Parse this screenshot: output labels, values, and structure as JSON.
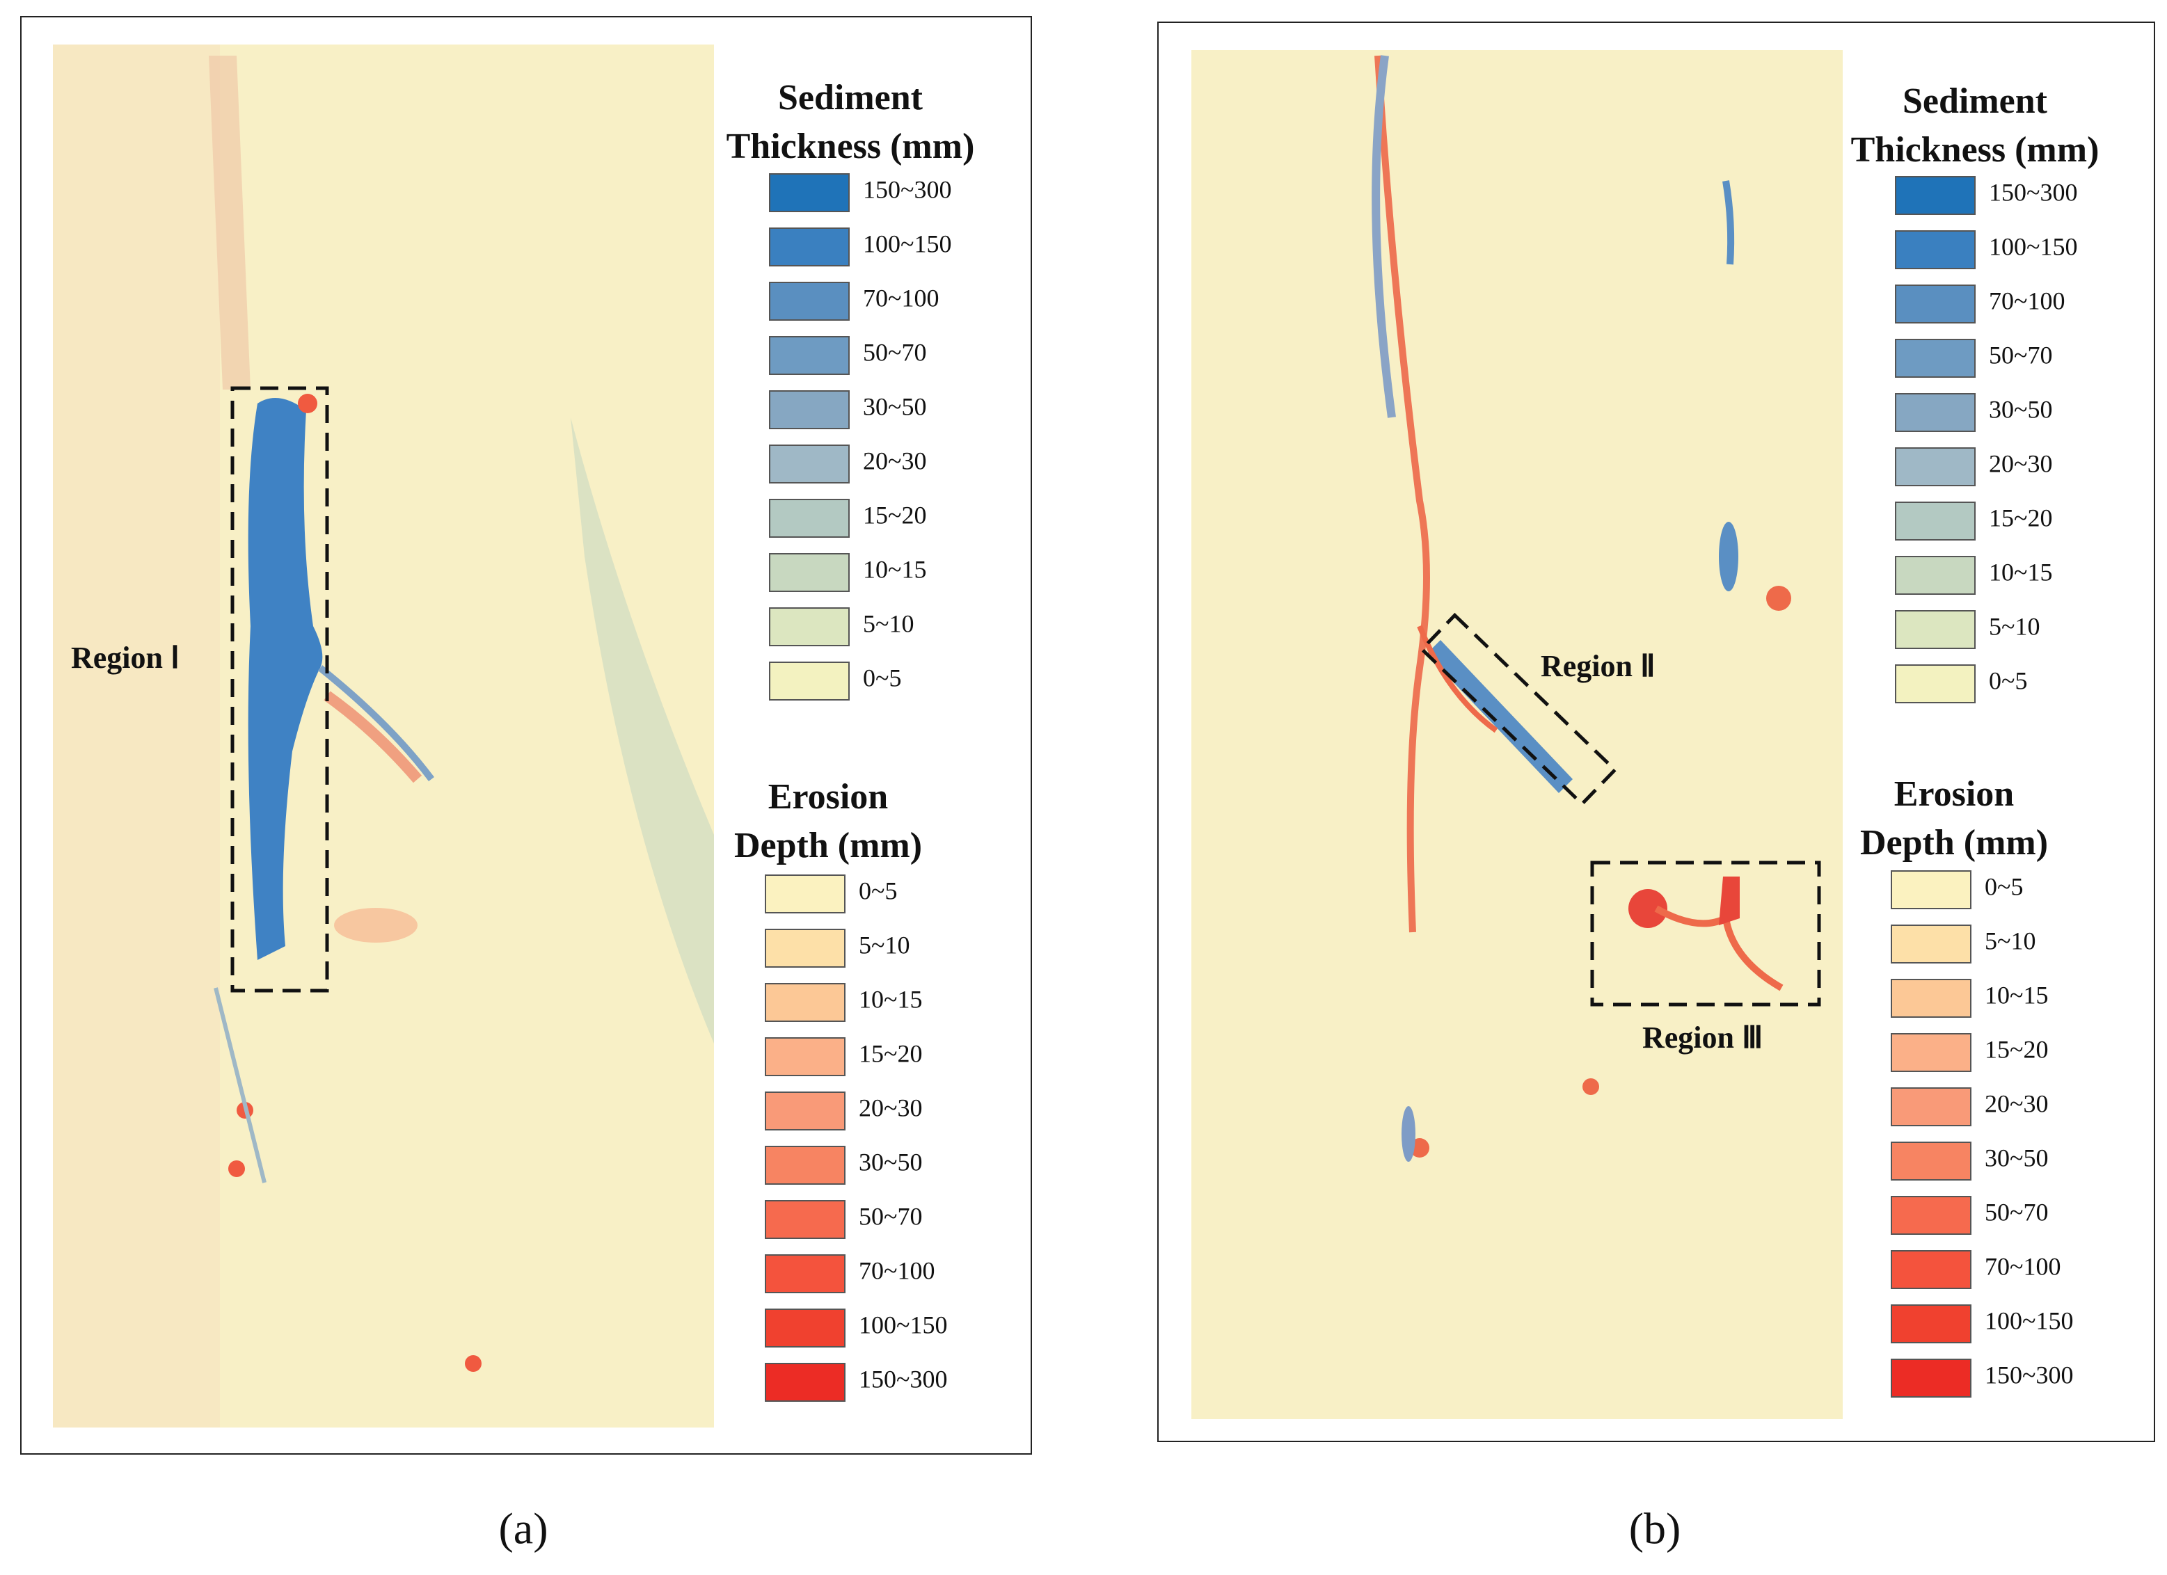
{
  "panels": [
    {
      "label": "(a)",
      "regions": [
        "Region Ⅰ"
      ],
      "sediment": {
        "title_lines": [
          "Sediment",
          "Thickness (mm)"
        ],
        "items": [
          {
            "label": "150~300",
            "color": "#1f73b8"
          },
          {
            "label": "100~150",
            "color": "#3a80c0"
          },
          {
            "label": "70~100",
            "color": "#5a8fc0"
          },
          {
            "label": "50~70",
            "color": "#6e9bc2"
          },
          {
            "label": "30~50",
            "color": "#86a7c2"
          },
          {
            "label": "20~30",
            "color": "#9fb8c6"
          },
          {
            "label": "15~20",
            "color": "#b3c9c2"
          },
          {
            "label": "10~15",
            "color": "#c8d8c0"
          },
          {
            "label": "5~10",
            "color": "#dce6c0"
          },
          {
            "label": "0~5",
            "color": "#f3f2c0"
          }
        ]
      },
      "erosion": {
        "title_lines": [
          "Erosion",
          "Depth (mm)"
        ],
        "items": [
          {
            "label": "0~5",
            "color": "#fbf2c0"
          },
          {
            "label": "5~10",
            "color": "#fde0a8"
          },
          {
            "label": "10~15",
            "color": "#fcc896"
          },
          {
            "label": "15~20",
            "color": "#fbb088"
          },
          {
            "label": "20~30",
            "color": "#f99a78"
          },
          {
            "label": "30~50",
            "color": "#f78462"
          },
          {
            "label": "50~70",
            "color": "#f66a4e"
          },
          {
            "label": "70~100",
            "color": "#f4533d"
          },
          {
            "label": "100~150",
            "color": "#f0412f"
          },
          {
            "label": "150~300",
            "color": "#ec2c25"
          }
        ]
      }
    },
    {
      "label": "(b)",
      "regions": [
        "Region Ⅱ",
        "Region Ⅲ"
      ],
      "sediment": {
        "title_lines": [
          "Sediment",
          "Thickness (mm)"
        ],
        "items": [
          {
            "label": "150~300",
            "color": "#1f73b8"
          },
          {
            "label": "100~150",
            "color": "#3a80c0"
          },
          {
            "label": "70~100",
            "color": "#5a8fc0"
          },
          {
            "label": "50~70",
            "color": "#6e9bc2"
          },
          {
            "label": "30~50",
            "color": "#86a7c2"
          },
          {
            "label": "20~30",
            "color": "#9fb8c6"
          },
          {
            "label": "15~20",
            "color": "#b3c9c2"
          },
          {
            "label": "10~15",
            "color": "#c8d8c0"
          },
          {
            "label": "5~10",
            "color": "#dce6c0"
          },
          {
            "label": "0~5",
            "color": "#f3f2c0"
          }
        ]
      },
      "erosion": {
        "title_lines": [
          "Erosion",
          "Depth (mm)"
        ],
        "items": [
          {
            "label": "0~5",
            "color": "#fbf2c0"
          },
          {
            "label": "5~10",
            "color": "#fde0a8"
          },
          {
            "label": "10~15",
            "color": "#fcc896"
          },
          {
            "label": "15~20",
            "color": "#fbb088"
          },
          {
            "label": "20~30",
            "color": "#f99a78"
          },
          {
            "label": "30~50",
            "color": "#f78462"
          },
          {
            "label": "50~70",
            "color": "#f66a4e"
          },
          {
            "label": "70~100",
            "color": "#f4533d"
          },
          {
            "label": "100~150",
            "color": "#f0412f"
          },
          {
            "label": "150~300",
            "color": "#ec2c25"
          }
        ]
      }
    }
  ]
}
